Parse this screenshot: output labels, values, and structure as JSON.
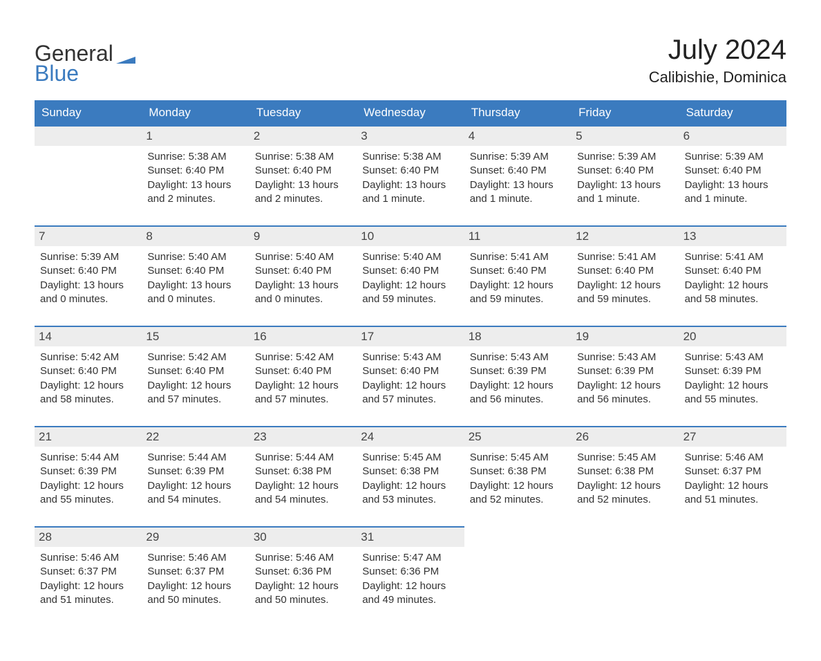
{
  "logo": {
    "general": "General",
    "blue": "Blue",
    "flag_color": "#3b7bbf"
  },
  "title": {
    "month": "July 2024",
    "location": "Calibishie, Dominica"
  },
  "calendar": {
    "header_bg": "#3b7bbf",
    "header_fg": "#ffffff",
    "daynum_bg": "#ededed",
    "divider_color": "#3b7bbf",
    "text_color": "#333333",
    "background": "#ffffff",
    "days": [
      "Sunday",
      "Monday",
      "Tuesday",
      "Wednesday",
      "Thursday",
      "Friday",
      "Saturday"
    ],
    "leading_blanks": 1,
    "cells": [
      {
        "n": "1",
        "sunrise": "5:38 AM",
        "sunset": "6:40 PM",
        "daylight": "13 hours and 2 minutes."
      },
      {
        "n": "2",
        "sunrise": "5:38 AM",
        "sunset": "6:40 PM",
        "daylight": "13 hours and 2 minutes."
      },
      {
        "n": "3",
        "sunrise": "5:38 AM",
        "sunset": "6:40 PM",
        "daylight": "13 hours and 1 minute."
      },
      {
        "n": "4",
        "sunrise": "5:39 AM",
        "sunset": "6:40 PM",
        "daylight": "13 hours and 1 minute."
      },
      {
        "n": "5",
        "sunrise": "5:39 AM",
        "sunset": "6:40 PM",
        "daylight": "13 hours and 1 minute."
      },
      {
        "n": "6",
        "sunrise": "5:39 AM",
        "sunset": "6:40 PM",
        "daylight": "13 hours and 1 minute."
      },
      {
        "n": "7",
        "sunrise": "5:39 AM",
        "sunset": "6:40 PM",
        "daylight": "13 hours and 0 minutes."
      },
      {
        "n": "8",
        "sunrise": "5:40 AM",
        "sunset": "6:40 PM",
        "daylight": "13 hours and 0 minutes."
      },
      {
        "n": "9",
        "sunrise": "5:40 AM",
        "sunset": "6:40 PM",
        "daylight": "13 hours and 0 minutes."
      },
      {
        "n": "10",
        "sunrise": "5:40 AM",
        "sunset": "6:40 PM",
        "daylight": "12 hours and 59 minutes."
      },
      {
        "n": "11",
        "sunrise": "5:41 AM",
        "sunset": "6:40 PM",
        "daylight": "12 hours and 59 minutes."
      },
      {
        "n": "12",
        "sunrise": "5:41 AM",
        "sunset": "6:40 PM",
        "daylight": "12 hours and 59 minutes."
      },
      {
        "n": "13",
        "sunrise": "5:41 AM",
        "sunset": "6:40 PM",
        "daylight": "12 hours and 58 minutes."
      },
      {
        "n": "14",
        "sunrise": "5:42 AM",
        "sunset": "6:40 PM",
        "daylight": "12 hours and 58 minutes."
      },
      {
        "n": "15",
        "sunrise": "5:42 AM",
        "sunset": "6:40 PM",
        "daylight": "12 hours and 57 minutes."
      },
      {
        "n": "16",
        "sunrise": "5:42 AM",
        "sunset": "6:40 PM",
        "daylight": "12 hours and 57 minutes."
      },
      {
        "n": "17",
        "sunrise": "5:43 AM",
        "sunset": "6:40 PM",
        "daylight": "12 hours and 57 minutes."
      },
      {
        "n": "18",
        "sunrise": "5:43 AM",
        "sunset": "6:39 PM",
        "daylight": "12 hours and 56 minutes."
      },
      {
        "n": "19",
        "sunrise": "5:43 AM",
        "sunset": "6:39 PM",
        "daylight": "12 hours and 56 minutes."
      },
      {
        "n": "20",
        "sunrise": "5:43 AM",
        "sunset": "6:39 PM",
        "daylight": "12 hours and 55 minutes."
      },
      {
        "n": "21",
        "sunrise": "5:44 AM",
        "sunset": "6:39 PM",
        "daylight": "12 hours and 55 minutes."
      },
      {
        "n": "22",
        "sunrise": "5:44 AM",
        "sunset": "6:39 PM",
        "daylight": "12 hours and 54 minutes."
      },
      {
        "n": "23",
        "sunrise": "5:44 AM",
        "sunset": "6:38 PM",
        "daylight": "12 hours and 54 minutes."
      },
      {
        "n": "24",
        "sunrise": "5:45 AM",
        "sunset": "6:38 PM",
        "daylight": "12 hours and 53 minutes."
      },
      {
        "n": "25",
        "sunrise": "5:45 AM",
        "sunset": "6:38 PM",
        "daylight": "12 hours and 52 minutes."
      },
      {
        "n": "26",
        "sunrise": "5:45 AM",
        "sunset": "6:38 PM",
        "daylight": "12 hours and 52 minutes."
      },
      {
        "n": "27",
        "sunrise": "5:46 AM",
        "sunset": "6:37 PM",
        "daylight": "12 hours and 51 minutes."
      },
      {
        "n": "28",
        "sunrise": "5:46 AM",
        "sunset": "6:37 PM",
        "daylight": "12 hours and 51 minutes."
      },
      {
        "n": "29",
        "sunrise": "5:46 AM",
        "sunset": "6:37 PM",
        "daylight": "12 hours and 50 minutes."
      },
      {
        "n": "30",
        "sunrise": "5:46 AM",
        "sunset": "6:36 PM",
        "daylight": "12 hours and 50 minutes."
      },
      {
        "n": "31",
        "sunrise": "5:47 AM",
        "sunset": "6:36 PM",
        "daylight": "12 hours and 49 minutes."
      }
    ],
    "labels": {
      "sunrise": "Sunrise: ",
      "sunset": "Sunset: ",
      "daylight": "Daylight: "
    }
  }
}
